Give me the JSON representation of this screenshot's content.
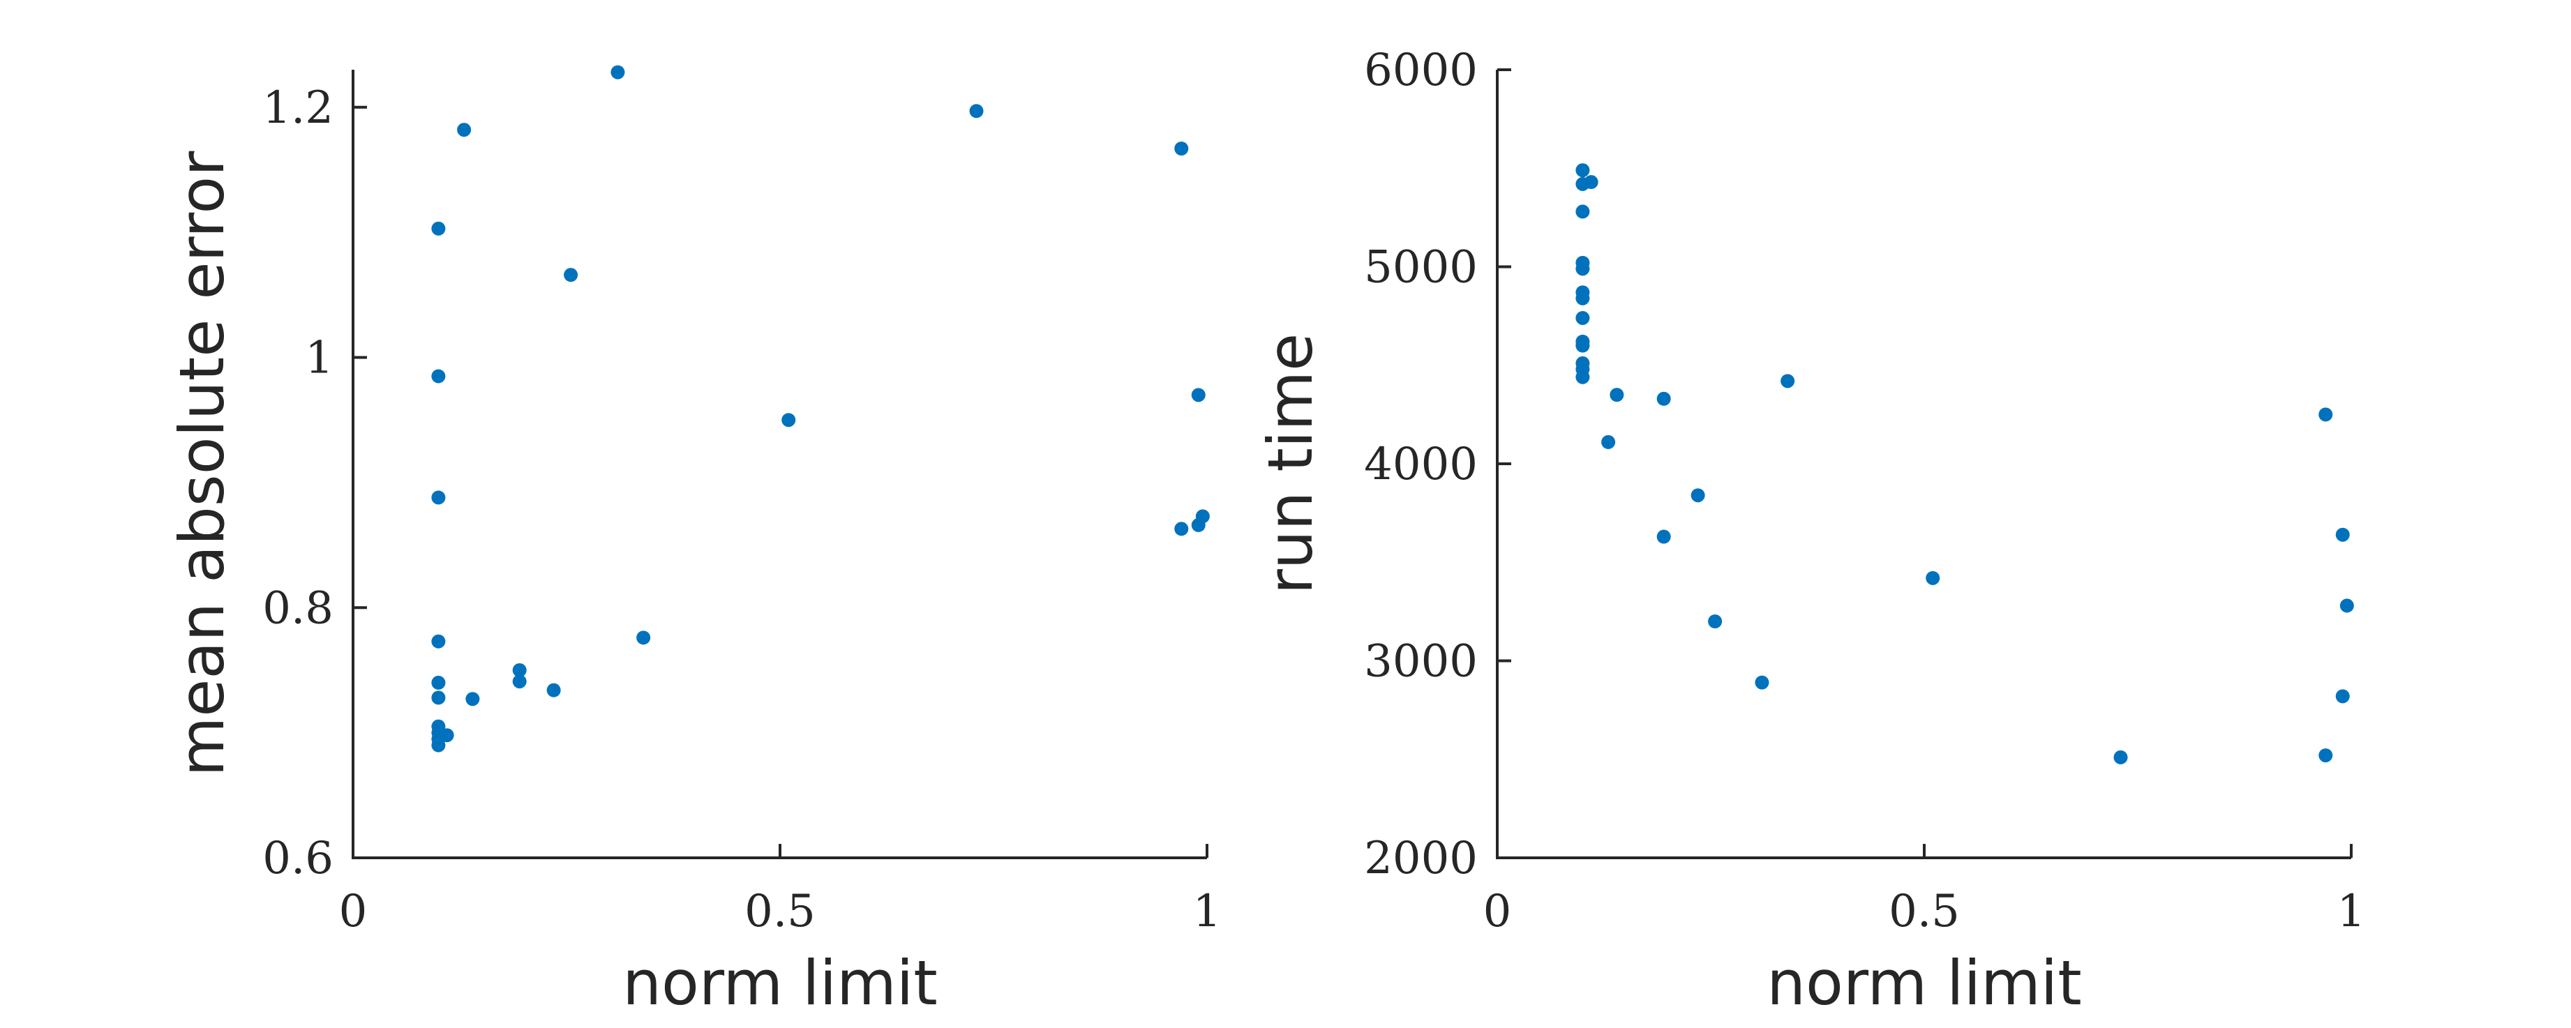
{
  "chart_data": [
    {
      "type": "scatter",
      "title": "",
      "xlabel": "norm limit",
      "ylabel": "mean absolute error",
      "xlim": [
        0,
        1
      ],
      "ylim": [
        0.6,
        1.23
      ],
      "xticks": [
        "0",
        "0.5",
        "1"
      ],
      "xtick_values": [
        0,
        0.5,
        1
      ],
      "yticks": [
        "0.6",
        "0.8",
        "1",
        "1.2"
      ],
      "ytick_values": [
        0.6,
        0.8,
        1.0,
        1.2
      ],
      "grid": false,
      "color": "#0072BD",
      "points": [
        {
          "x": 0.1,
          "y": 1.103
        },
        {
          "x": 0.1,
          "y": 0.985
        },
        {
          "x": 0.1,
          "y": 0.888
        },
        {
          "x": 0.1,
          "y": 0.773
        },
        {
          "x": 0.1,
          "y": 0.74
        },
        {
          "x": 0.1,
          "y": 0.728
        },
        {
          "x": 0.1,
          "y": 0.705
        },
        {
          "x": 0.1,
          "y": 0.7
        },
        {
          "x": 0.1,
          "y": 0.695
        },
        {
          "x": 0.1,
          "y": 0.69
        },
        {
          "x": 0.11,
          "y": 0.698
        },
        {
          "x": 0.13,
          "y": 1.182
        },
        {
          "x": 0.14,
          "y": 0.727
        },
        {
          "x": 0.195,
          "y": 0.75
        },
        {
          "x": 0.195,
          "y": 0.741
        },
        {
          "x": 0.235,
          "y": 0.734
        },
        {
          "x": 0.255,
          "y": 1.066
        },
        {
          "x": 0.31,
          "y": 1.228
        },
        {
          "x": 0.34,
          "y": 0.776
        },
        {
          "x": 0.51,
          "y": 0.95
        },
        {
          "x": 0.73,
          "y": 1.197
        },
        {
          "x": 0.97,
          "y": 1.167
        },
        {
          "x": 0.97,
          "y": 0.863
        },
        {
          "x": 0.99,
          "y": 0.97
        },
        {
          "x": 0.995,
          "y": 0.873
        },
        {
          "x": 0.99,
          "y": 0.866
        }
      ]
    },
    {
      "type": "scatter",
      "title": "",
      "xlabel": "norm limit",
      "ylabel": "run time",
      "xlim": [
        0,
        1
      ],
      "ylim": [
        2000,
        6000
      ],
      "xticks": [
        "0",
        "0.5",
        "1"
      ],
      "xtick_values": [
        0,
        0.5,
        1
      ],
      "yticks": [
        "2000",
        "3000",
        "4000",
        "5000",
        "6000"
      ],
      "ytick_values": [
        2000,
        3000,
        4000,
        5000,
        6000
      ],
      "grid": false,
      "color": "#0072BD",
      "points": [
        {
          "x": 0.1,
          "y": 5490
        },
        {
          "x": 0.1,
          "y": 5420
        },
        {
          "x": 0.11,
          "y": 5430
        },
        {
          "x": 0.1,
          "y": 5280
        },
        {
          "x": 0.1,
          "y": 5020
        },
        {
          "x": 0.1,
          "y": 4990
        },
        {
          "x": 0.1,
          "y": 4870
        },
        {
          "x": 0.1,
          "y": 4840
        },
        {
          "x": 0.1,
          "y": 4740
        },
        {
          "x": 0.1,
          "y": 4620
        },
        {
          "x": 0.1,
          "y": 4600
        },
        {
          "x": 0.1,
          "y": 4510
        },
        {
          "x": 0.1,
          "y": 4480
        },
        {
          "x": 0.1,
          "y": 4440
        },
        {
          "x": 0.14,
          "y": 4350
        },
        {
          "x": 0.13,
          "y": 4110
        },
        {
          "x": 0.195,
          "y": 4330
        },
        {
          "x": 0.235,
          "y": 3840
        },
        {
          "x": 0.195,
          "y": 3630
        },
        {
          "x": 0.255,
          "y": 3200
        },
        {
          "x": 0.31,
          "y": 2890
        },
        {
          "x": 0.34,
          "y": 4420
        },
        {
          "x": 0.51,
          "y": 3420
        },
        {
          "x": 0.73,
          "y": 2510
        },
        {
          "x": 0.97,
          "y": 4250
        },
        {
          "x": 0.97,
          "y": 2520
        },
        {
          "x": 0.99,
          "y": 3640
        },
        {
          "x": 0.995,
          "y": 3280
        },
        {
          "x": 0.99,
          "y": 2820
        }
      ]
    }
  ]
}
